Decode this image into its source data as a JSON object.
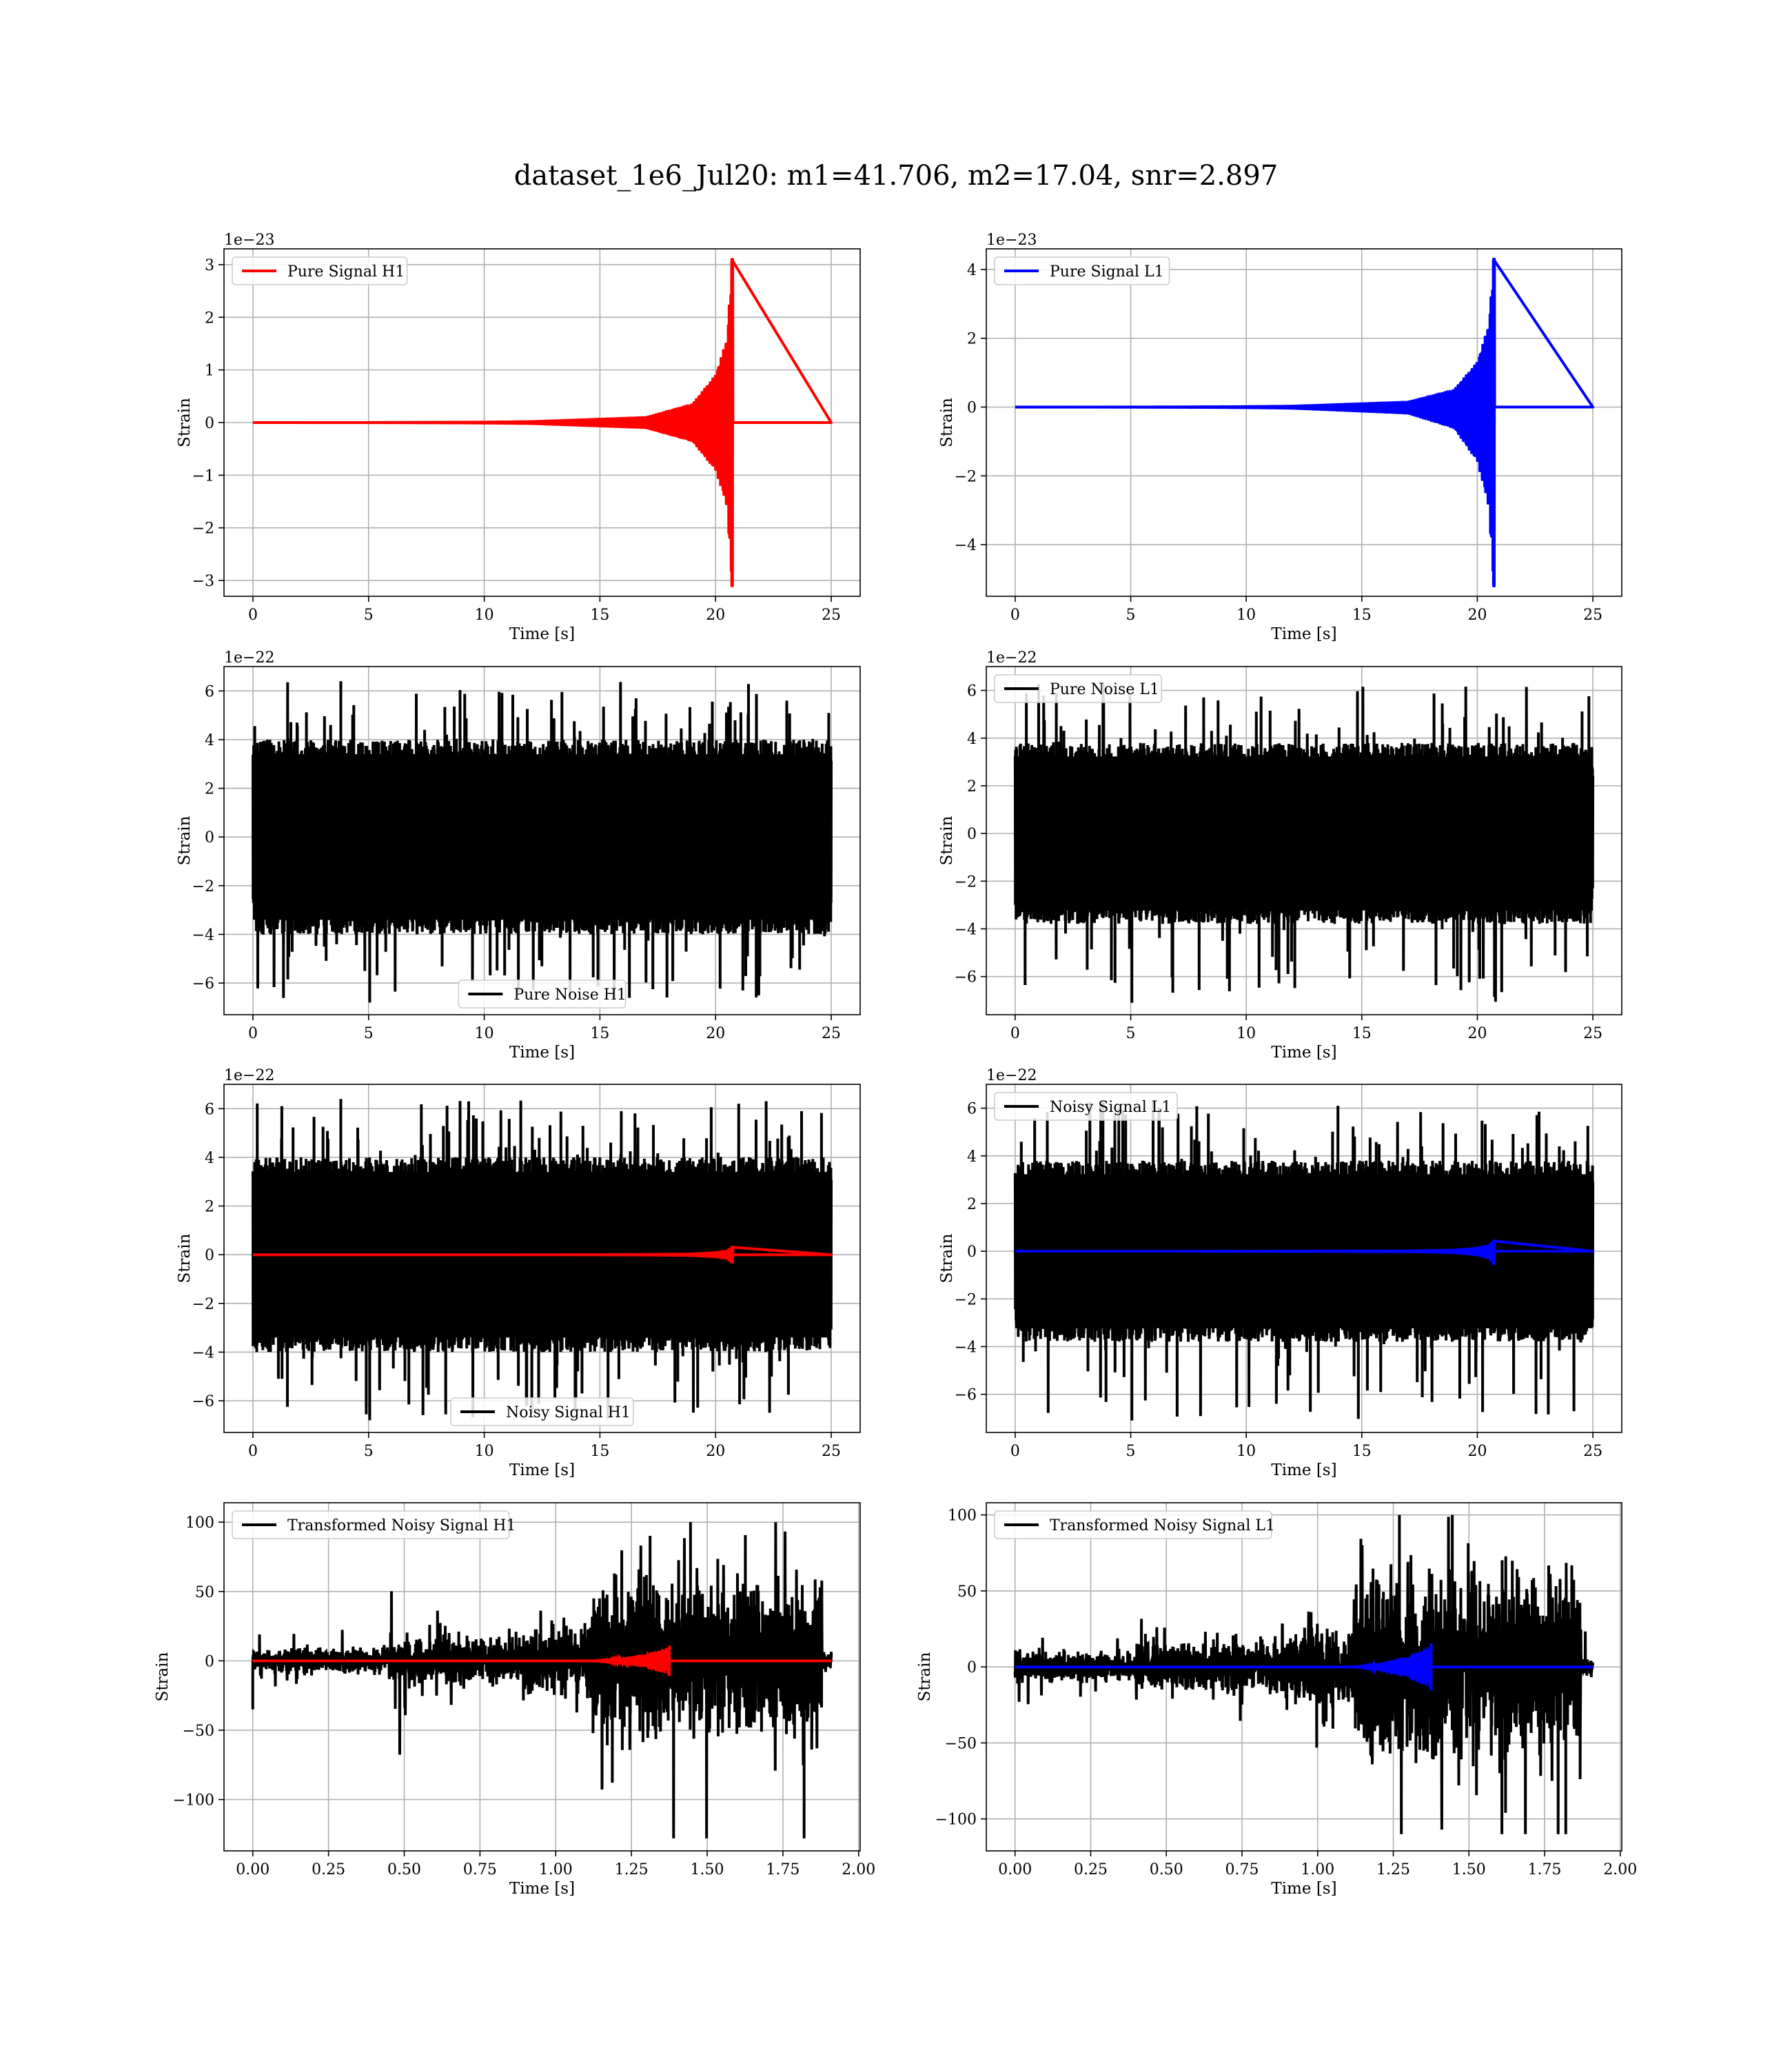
{
  "figure": {
    "suptitle": "dataset_1e6_Jul20: m1=41.706, m2=17.04, snr=2.897"
  },
  "chart_data": [
    {
      "id": "pure-signal-h1",
      "type": "line",
      "title": "",
      "xlabel": "Time [s]",
      "ylabel": "Strain",
      "offset_text": "1e−23",
      "xlim": [
        -1.25,
        26.25
      ],
      "ylim": [
        -3.3,
        3.3
      ],
      "xticks": [
        0,
        5,
        10,
        15,
        20,
        25
      ],
      "xtick_labels": [
        "0",
        "5",
        "10",
        "15",
        "20",
        "25"
      ],
      "yticks": [
        -3,
        -2,
        -1,
        0,
        1,
        2,
        3
      ],
      "ytick_labels": [
        "−3",
        "−2",
        "−1",
        "0",
        "1",
        "2",
        "3"
      ],
      "grid": true,
      "legend_position": "upper-left",
      "series": [
        {
          "name": "Pure Signal H1",
          "kind": "chirp",
          "color": "#ff0000",
          "x_range": [
            0,
            25
          ],
          "merger_time": 20.7,
          "peak_amplitude_pos": 3.1,
          "peak_amplitude_neg": -3.1,
          "envelope_key_points": [
            [
              12,
              0.02
            ],
            [
              17,
              0.1
            ],
            [
              19,
              0.35
            ],
            [
              20,
              0.9
            ],
            [
              20.5,
              1.6
            ],
            [
              20.7,
              3.1
            ]
          ]
        }
      ]
    },
    {
      "id": "pure-signal-l1",
      "type": "line",
      "title": "",
      "xlabel": "Time [s]",
      "ylabel": "Strain",
      "offset_text": "1e−23",
      "xlim": [
        -1.25,
        26.25
      ],
      "ylim": [
        -5.5,
        4.6
      ],
      "xticks": [
        0,
        5,
        10,
        15,
        20,
        25
      ],
      "xtick_labels": [
        "0",
        "5",
        "10",
        "15",
        "20",
        "25"
      ],
      "yticks": [
        -4,
        -2,
        0,
        2,
        4
      ],
      "ytick_labels": [
        "−4",
        "−2",
        "0",
        "2",
        "4"
      ],
      "grid": true,
      "legend_position": "upper-left",
      "series": [
        {
          "name": "Pure Signal L1",
          "kind": "chirp",
          "color": "#0000ff",
          "x_range": [
            0,
            25
          ],
          "merger_time": 20.7,
          "peak_amplitude_pos": 4.3,
          "peak_amplitude_neg": -5.2,
          "envelope_key_points": [
            [
              12,
              0.03
            ],
            [
              17,
              0.15
            ],
            [
              19,
              0.5
            ],
            [
              20,
              1.3
            ],
            [
              20.5,
              2.4
            ],
            [
              20.7,
              4.3
            ]
          ]
        }
      ]
    },
    {
      "id": "pure-noise-h1",
      "type": "line",
      "title": "",
      "xlabel": "Time [s]",
      "ylabel": "Strain",
      "offset_text": "1e−22",
      "xlim": [
        -1.25,
        26.25
      ],
      "ylim": [
        -7.3,
        7.0
      ],
      "xticks": [
        0,
        5,
        10,
        15,
        20,
        25
      ],
      "xtick_labels": [
        "0",
        "5",
        "10",
        "15",
        "20",
        "25"
      ],
      "yticks": [
        -6,
        -4,
        -2,
        0,
        2,
        4,
        6
      ],
      "ytick_labels": [
        "−6",
        "−4",
        "−2",
        "0",
        "2",
        "4",
        "6"
      ],
      "grid": true,
      "legend_position": "lower-center",
      "series": [
        {
          "name": "Pure Noise H1",
          "kind": "noise",
          "color": "#000000",
          "x_range": [
            0,
            25
          ],
          "band_max": 4.0,
          "band_min": -4.0,
          "spike_max": 6.4,
          "spike_min": -6.8
        }
      ]
    },
    {
      "id": "pure-noise-l1",
      "type": "line",
      "title": "",
      "xlabel": "Time [s]",
      "ylabel": "Strain",
      "offset_text": "1e−22",
      "xlim": [
        -1.25,
        26.25
      ],
      "ylim": [
        -7.6,
        7.0
      ],
      "xticks": [
        0,
        5,
        10,
        15,
        20,
        25
      ],
      "xtick_labels": [
        "0",
        "5",
        "10",
        "15",
        "20",
        "25"
      ],
      "yticks": [
        -6,
        -4,
        -2,
        0,
        2,
        4,
        6
      ],
      "ytick_labels": [
        "−6",
        "−4",
        "−2",
        "0",
        "2",
        "4",
        "6"
      ],
      "grid": true,
      "legend_position": "upper-left",
      "series": [
        {
          "name": "Pure Noise L1",
          "kind": "noise",
          "color": "#000000",
          "x_range": [
            0,
            25
          ],
          "band_max": 3.8,
          "band_min": -3.8,
          "spike_max": 6.3,
          "spike_min": -7.1
        }
      ]
    },
    {
      "id": "noisy-signal-h1",
      "type": "line",
      "title": "",
      "xlabel": "Time [s]",
      "ylabel": "Strain",
      "offset_text": "1e−22",
      "xlim": [
        -1.25,
        26.25
      ],
      "ylim": [
        -7.3,
        7.0
      ],
      "xticks": [
        0,
        5,
        10,
        15,
        20,
        25
      ],
      "xtick_labels": [
        "0",
        "5",
        "10",
        "15",
        "20",
        "25"
      ],
      "yticks": [
        -6,
        -4,
        -2,
        0,
        2,
        4,
        6
      ],
      "ytick_labels": [
        "−6",
        "−4",
        "−2",
        "0",
        "2",
        "4",
        "6"
      ],
      "grid": true,
      "legend_position": "lower-center",
      "series": [
        {
          "name": "Noisy Signal H1",
          "kind": "noise",
          "color": "#000000",
          "x_range": [
            0,
            25
          ],
          "band_max": 4.0,
          "band_min": -4.0,
          "spike_max": 6.4,
          "spike_min": -6.8
        },
        {
          "name": "",
          "kind": "chirp",
          "color": "#ff0000",
          "x_range": [
            0,
            25
          ],
          "merger_time": 20.7,
          "peak_amplitude_pos": 0.31,
          "peak_amplitude_neg": -0.31,
          "envelope_key_points": [
            [
              12,
              0.002
            ],
            [
              17,
              0.01
            ],
            [
              19,
              0.035
            ],
            [
              20,
              0.09
            ],
            [
              20.5,
              0.16
            ],
            [
              20.7,
              0.31
            ]
          ]
        }
      ]
    },
    {
      "id": "noisy-signal-l1",
      "type": "line",
      "title": "",
      "xlabel": "Time [s]",
      "ylabel": "Strain",
      "offset_text": "1e−22",
      "xlim": [
        -1.25,
        26.25
      ],
      "ylim": [
        -7.6,
        7.0
      ],
      "xticks": [
        0,
        5,
        10,
        15,
        20,
        25
      ],
      "xtick_labels": [
        "0",
        "5",
        "10",
        "15",
        "20",
        "25"
      ],
      "yticks": [
        -6,
        -4,
        -2,
        0,
        2,
        4,
        6
      ],
      "ytick_labels": [
        "−6",
        "−4",
        "−2",
        "0",
        "2",
        "4",
        "6"
      ],
      "grid": true,
      "legend_position": "upper-left",
      "series": [
        {
          "name": "Noisy Signal L1",
          "kind": "noise",
          "color": "#000000",
          "x_range": [
            0,
            25
          ],
          "band_max": 3.8,
          "band_min": -3.8,
          "spike_max": 6.3,
          "spike_min": -7.1
        },
        {
          "name": "",
          "kind": "chirp",
          "color": "#0000ff",
          "x_range": [
            0,
            25
          ],
          "merger_time": 20.7,
          "peak_amplitude_pos": 0.43,
          "peak_amplitude_neg": -0.52,
          "envelope_key_points": [
            [
              12,
              0.003
            ],
            [
              17,
              0.015
            ],
            [
              19,
              0.05
            ],
            [
              20,
              0.13
            ],
            [
              20.5,
              0.24
            ],
            [
              20.7,
              0.43
            ]
          ]
        }
      ]
    },
    {
      "id": "transformed-noisy-signal-h1",
      "type": "line",
      "title": "",
      "xlabel": "Time [s]",
      "ylabel": "Strain",
      "offset_text": "",
      "xlim": [
        -0.095,
        2.005
      ],
      "ylim": [
        -137,
        114
      ],
      "xticks": [
        0,
        0.25,
        0.5,
        0.75,
        1.0,
        1.25,
        1.5,
        1.75,
        2.0
      ],
      "xtick_labels": [
        "0.00",
        "0.25",
        "0.50",
        "0.75",
        "1.00",
        "1.25",
        "1.50",
        "1.75",
        "2.00"
      ],
      "yticks": [
        -100,
        -50,
        0,
        50,
        100
      ],
      "ytick_labels": [
        "−100",
        "−50",
        "0",
        "50",
        "100"
      ],
      "grid": true,
      "legend_position": "upper-left",
      "series": [
        {
          "name": "Transformed Noisy Signal H1",
          "kind": "transformed-noise",
          "color": "#000000",
          "x_range": [
            0,
            1.91
          ],
          "segments": [
            [
              0,
              0.45,
              8
            ],
            [
              0.45,
              0.9,
              14
            ],
            [
              0.9,
              1.12,
              20
            ],
            [
              1.12,
              1.88,
              45
            ],
            [
              1.88,
              1.91,
              6
            ]
          ],
          "spike_max": 100,
          "spike_min": -128,
          "start_spike": -35
        },
        {
          "name": "",
          "kind": "transformed-chirp",
          "color": "#ff0000",
          "x_range": [
            0,
            1.91
          ],
          "chirp_start": 1.08,
          "merger_time": 1.375,
          "peak_amplitude": 10
        }
      ]
    },
    {
      "id": "transformed-noisy-signal-l1",
      "type": "line",
      "title": "",
      "xlabel": "Time [s]",
      "ylabel": "Strain",
      "offset_text": "",
      "xlim": [
        -0.095,
        2.005
      ],
      "ylim": [
        -121,
        108
      ],
      "xticks": [
        0,
        0.25,
        0.5,
        0.75,
        1.0,
        1.25,
        1.5,
        1.75,
        2.0
      ],
      "xtick_labels": [
        "0.00",
        "0.25",
        "0.50",
        "0.75",
        "1.00",
        "1.25",
        "1.50",
        "1.75",
        "2.00"
      ],
      "yticks": [
        -100,
        -50,
        0,
        50,
        100
      ],
      "ytick_labels": [
        "−100",
        "−50",
        "0",
        "50",
        "100"
      ],
      "grid": true,
      "legend_position": "upper-left",
      "series": [
        {
          "name": "Transformed Noisy Signal L1",
          "kind": "transformed-noise",
          "color": "#000000",
          "x_range": [
            0,
            1.91
          ],
          "segments": [
            [
              0,
              0.4,
              8
            ],
            [
              0.4,
              0.88,
              14
            ],
            [
              0.88,
              1.12,
              22
            ],
            [
              1.12,
              1.87,
              50
            ],
            [
              1.87,
              1.91,
              5
            ]
          ],
          "spike_max": 100,
          "spike_min": -110,
          "start_spike": 0
        },
        {
          "name": "",
          "kind": "transformed-chirp",
          "color": "#0000ff",
          "x_range": [
            0,
            1.91
          ],
          "chirp_start": 1.08,
          "merger_time": 1.375,
          "peak_amplitude": 14
        }
      ]
    }
  ]
}
